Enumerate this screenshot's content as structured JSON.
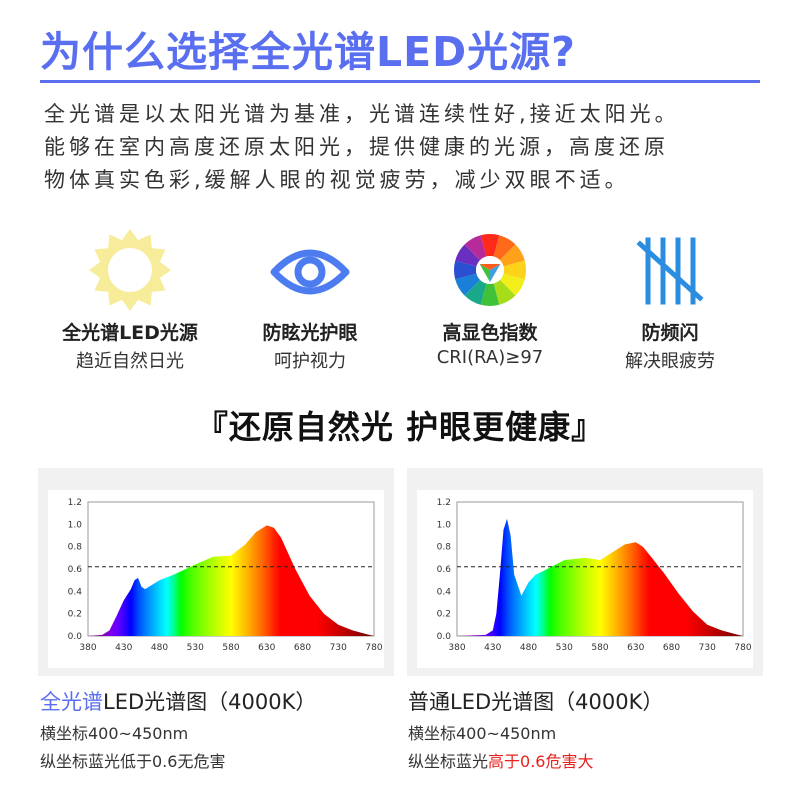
{
  "header": {
    "title": "为什么选择全光谱LED光源?",
    "intro_lines": [
      "全光谱是以太阳光谱为基准，光谱连续性好,接近太阳光。",
      "能够在室内高度还原太阳光，提供健康的光源，高度还原",
      "物体真实色彩,缓解人眼的视觉疲劳，减少双眼不适。"
    ]
  },
  "features": [
    {
      "icon": "sun-icon",
      "name": "全光谱LED光源",
      "desc": "趋近自然日光"
    },
    {
      "icon": "eye-icon",
      "name": "防眩光护眼",
      "desc": "呵护视力"
    },
    {
      "icon": "color-wheel-icon",
      "name": "高显色指数",
      "desc": "CRI(RA)≥97"
    },
    {
      "icon": "flicker-icon",
      "name": "防频闪",
      "desc": "解决眼疲劳"
    }
  ],
  "slogan": "『还原自然光 护眼更健康』",
  "colors": {
    "accent": "#5a6ff0",
    "danger": "#e8201e",
    "sun": "#f7ec9a",
    "eye": "#4d7cf0",
    "flicker": "#2b8de0"
  },
  "chart_data": [
    {
      "type": "area",
      "title": "",
      "xlabel": "",
      "ylabel": "",
      "xlim": [
        380,
        780
      ],
      "ylim": [
        0,
        1.2
      ],
      "x_ticks": [
        380,
        430,
        480,
        530,
        580,
        630,
        680,
        730,
        780
      ],
      "y_ticks": [
        0.0,
        0.2,
        0.4,
        0.6,
        0.8,
        1.0,
        1.2
      ],
      "threshold": 0.62,
      "grid": false,
      "x": [
        380,
        400,
        410,
        420,
        430,
        440,
        445,
        450,
        455,
        460,
        470,
        480,
        500,
        530,
        555,
        580,
        600,
        615,
        630,
        640,
        650,
        670,
        690,
        710,
        730,
        750,
        770,
        780
      ],
      "y": [
        0.0,
        0.01,
        0.05,
        0.18,
        0.32,
        0.42,
        0.5,
        0.52,
        0.44,
        0.42,
        0.46,
        0.5,
        0.55,
        0.64,
        0.71,
        0.72,
        0.82,
        0.93,
        0.99,
        0.97,
        0.88,
        0.6,
        0.36,
        0.2,
        0.1,
        0.05,
        0.015,
        0.0
      ]
    },
    {
      "type": "area",
      "title": "",
      "xlabel": "",
      "ylabel": "",
      "xlim": [
        380,
        780
      ],
      "ylim": [
        0,
        1.2
      ],
      "x_ticks": [
        380,
        430,
        480,
        530,
        580,
        630,
        680,
        730,
        780
      ],
      "y_ticks": [
        0.0,
        0.2,
        0.4,
        0.6,
        0.8,
        1.0,
        1.2
      ],
      "threshold": 0.62,
      "grid": false,
      "x": [
        380,
        420,
        430,
        435,
        440,
        445,
        450,
        455,
        460,
        470,
        480,
        490,
        500,
        530,
        560,
        580,
        600,
        615,
        630,
        640,
        650,
        670,
        690,
        710,
        730,
        750,
        770,
        780
      ],
      "y": [
        0.0,
        0.01,
        0.05,
        0.2,
        0.55,
        0.95,
        1.05,
        0.9,
        0.55,
        0.36,
        0.48,
        0.55,
        0.58,
        0.68,
        0.7,
        0.68,
        0.76,
        0.82,
        0.84,
        0.8,
        0.72,
        0.56,
        0.38,
        0.22,
        0.1,
        0.05,
        0.015,
        0.0
      ]
    }
  ],
  "captions": [
    {
      "title_accent": "全光谱",
      "title_rest": "LED光谱图（4000K）",
      "line1": "横坐标400~450nm",
      "line2_prefix": "纵坐标蓝光低于0.6无危害",
      "line2_red": ""
    },
    {
      "title_accent": "",
      "title_rest": "普通LED光谱图（4000K）",
      "line1": "横坐标400~450nm",
      "line2_prefix": "纵坐标蓝光",
      "line2_red": "高于0.6危害大"
    }
  ]
}
